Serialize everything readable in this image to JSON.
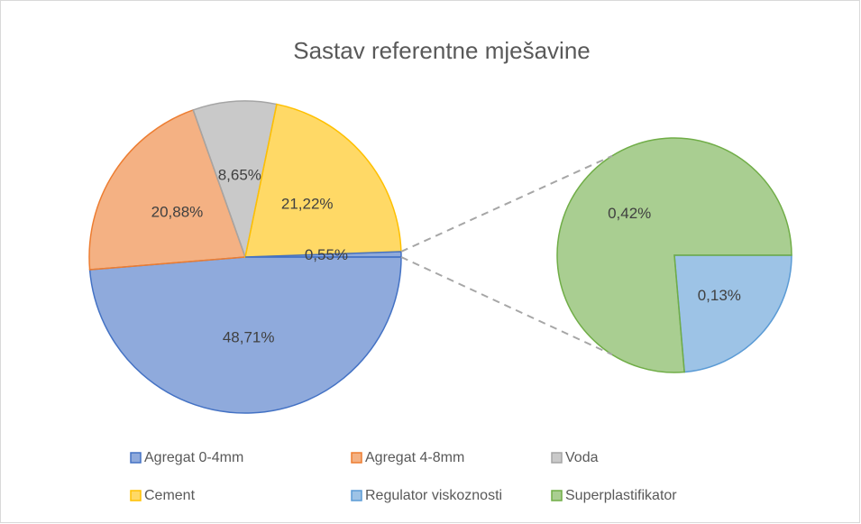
{
  "chart_data": {
    "type": "pie-of-pie",
    "title": "Sastav referentne  mješavine",
    "categories": [
      "Agregat 0-4mm",
      "Agregat 4-8mm",
      "Voda",
      "Cement",
      "Regulator viskoznosti",
      "Superplastifikator"
    ],
    "values": [
      48.71,
      20.88,
      8.65,
      21.22,
      0.13,
      0.42
    ],
    "value_labels": [
      "48,71%",
      "20,88%",
      "8,65%",
      "21,22%",
      "0,13%",
      "0,42%"
    ],
    "colors": [
      "#4472c4",
      "#ed7d31",
      "#a5a5a5",
      "#ffc000",
      "#5b9bd5",
      "#70ad47"
    ],
    "second_plot_count": 2,
    "other_value": 0.55,
    "other_label": "0,55%",
    "other_color": "#4472c4"
  }
}
